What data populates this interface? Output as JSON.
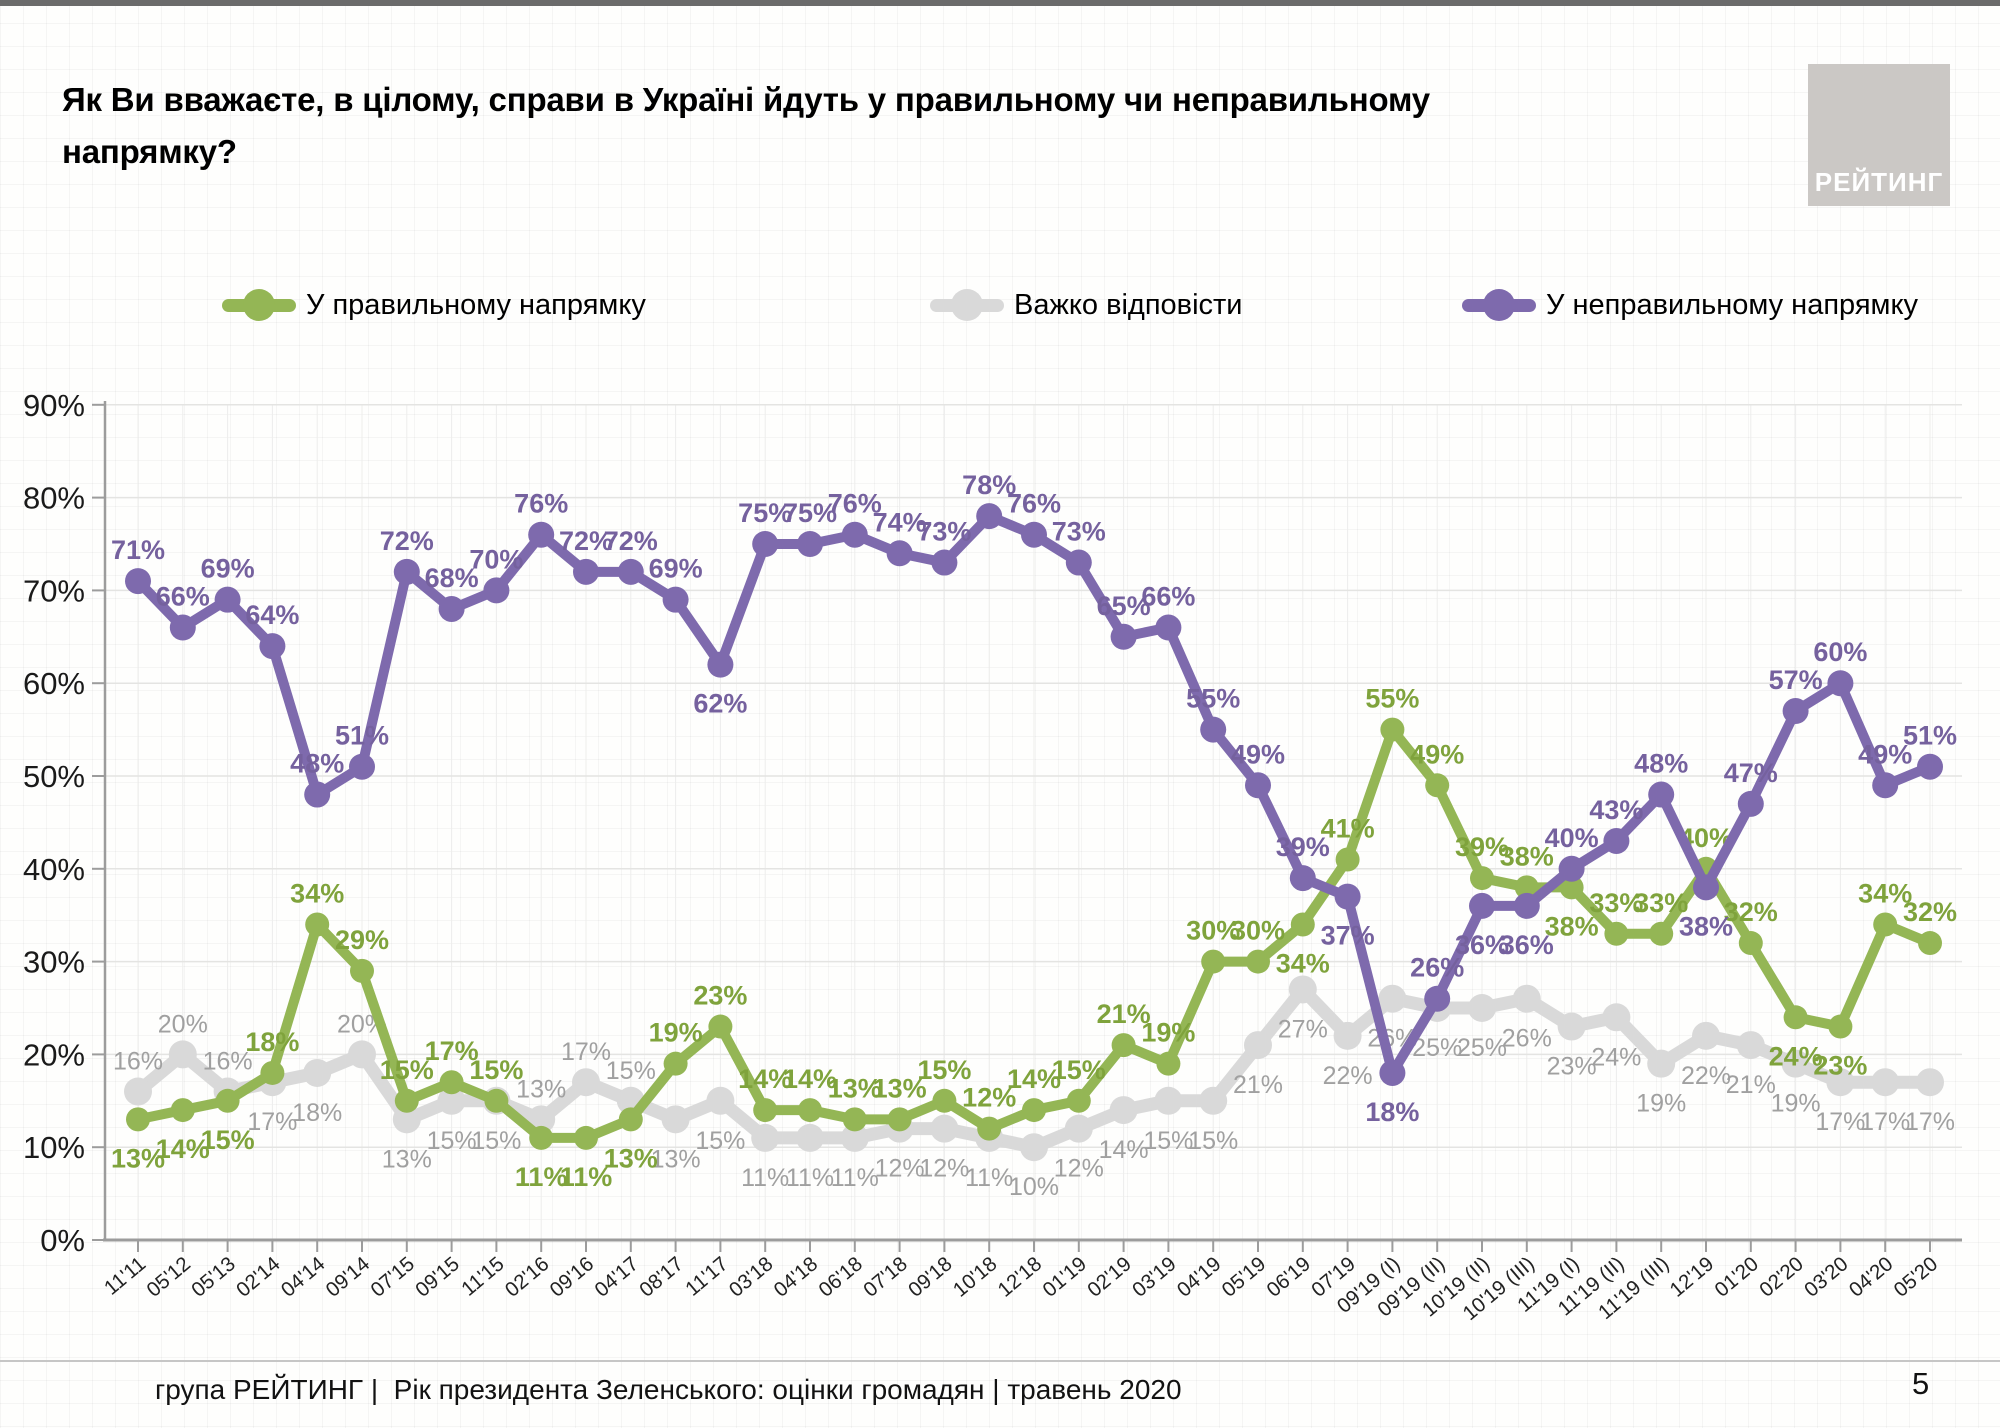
{
  "page": {
    "title": "Як Ви вважаєте, в цілому, справи в Україні йдуть у правильному чи неправильному напрямку?",
    "logo_text": "РЕЙТИНГ",
    "footer": "група РЕЙТИНГ |  Рік президента Зеленського: оцінки громадян | травень 2020",
    "page_number": "5"
  },
  "legend": [
    {
      "label": "У правильному напрямку",
      "color": "#94b655"
    },
    {
      "label": "Важко відповісти",
      "color": "#d9d9d9"
    },
    {
      "label": "У неправильному напрямку",
      "color": "#7e6aad"
    }
  ],
  "chart_data": {
    "type": "line",
    "title": "Як Ви вважаєте, в цілому, справи в Україні йдуть у правильному чи неправильному напрямку?",
    "ylim": [
      0,
      90
    ],
    "grid": true,
    "legend_position": "top",
    "y_ticks": [
      "0%",
      "10%",
      "20%",
      "30%",
      "40%",
      "50%",
      "60%",
      "70%",
      "80%",
      "90%"
    ],
    "x": [
      "11'11",
      "05'12",
      "05'13",
      "02'14",
      "04'14",
      "09'14",
      "07'15",
      "09'15",
      "11'15",
      "02'16",
      "09'16",
      "04'17",
      "08'17",
      "11'17",
      "03'18",
      "04'18",
      "06'18",
      "07'18",
      "09'18",
      "10'18",
      "12'18",
      "01'19",
      "02'19",
      "03'19",
      "04'19",
      "05'19",
      "06'19",
      "07'19",
      "09'19 (I)",
      "09'19 (II)",
      "10'19 (II)",
      "10'19 (III)",
      "11'19 (I)",
      "11'19 (II)",
      "11'19 (III)",
      "12'19",
      "01'20",
      "02'20",
      "03'20",
      "04'20",
      "05'20"
    ],
    "series": [
      {
        "name": "У правильному напрямку",
        "color": "#94b655",
        "label_color": "#7fa33c",
        "values": [
          13,
          14,
          15,
          18,
          34,
          29,
          15,
          17,
          15,
          11,
          11,
          13,
          19,
          23,
          14,
          14,
          13,
          13,
          15,
          12,
          14,
          15,
          21,
          19,
          30,
          30,
          34,
          41,
          55,
          49,
          39,
          38,
          38,
          33,
          33,
          40,
          32,
          24,
          23,
          34,
          32
        ],
        "label_side": [
          "b",
          "b",
          "b",
          "a",
          "a",
          "a",
          "a",
          "a",
          "a",
          "b",
          "b",
          "b",
          "a",
          "a",
          "a",
          "a",
          "a",
          "a",
          "a",
          "a",
          "a",
          "a",
          "a",
          "a",
          "a",
          "a",
          "b",
          "a",
          "a",
          "a",
          "a",
          "a",
          "b",
          "a",
          "a",
          "a",
          "a",
          "b",
          "b",
          "a",
          "a"
        ]
      },
      {
        "name": "Важко відповісти",
        "color": "#d9d9d9",
        "label_color": "#a0a0a0",
        "values": [
          16,
          20,
          16,
          17,
          18,
          20,
          13,
          15,
          15,
          13,
          17,
          15,
          13,
          15,
          11,
          11,
          11,
          12,
          12,
          11,
          10,
          12,
          14,
          15,
          15,
          21,
          27,
          22,
          26,
          25,
          25,
          26,
          23,
          24,
          19,
          22,
          21,
          19,
          17,
          17,
          17
        ],
        "label_side": [
          "a",
          "a",
          "a",
          "b",
          "b",
          "a",
          "b",
          "b",
          "b",
          "a",
          "a",
          "a",
          "b",
          "b",
          "b",
          "b",
          "b",
          "b",
          "b",
          "b",
          "b",
          "b",
          "b",
          "b",
          "b",
          "b",
          "b",
          "b",
          "b",
          "b",
          "b",
          "b",
          "b",
          "b",
          "b",
          "b",
          "b",
          "b",
          "b",
          "b",
          "b"
        ]
      },
      {
        "name": "У неправильному напрямку",
        "color": "#7e6aad",
        "label_color": "#75619e",
        "values": [
          71,
          66,
          69,
          64,
          48,
          51,
          72,
          68,
          70,
          76,
          72,
          72,
          69,
          62,
          75,
          75,
          76,
          74,
          73,
          78,
          76,
          73,
          65,
          66,
          55,
          49,
          39,
          37,
          18,
          26,
          36,
          36,
          40,
          43,
          48,
          38,
          47,
          57,
          60,
          49,
          51
        ],
        "label_side": [
          "a",
          "a",
          "a",
          "a",
          "a",
          "a",
          "a",
          "a",
          "a",
          "a",
          "a",
          "a",
          "a",
          "b",
          "a",
          "a",
          "a",
          "a",
          "a",
          "a",
          "a",
          "a",
          "a",
          "a",
          "a",
          "a",
          "a",
          "b",
          "b",
          "a",
          "b",
          "b",
          "a",
          "a",
          "a",
          "b",
          "a",
          "a",
          "a",
          "a",
          "a"
        ]
      }
    ]
  }
}
